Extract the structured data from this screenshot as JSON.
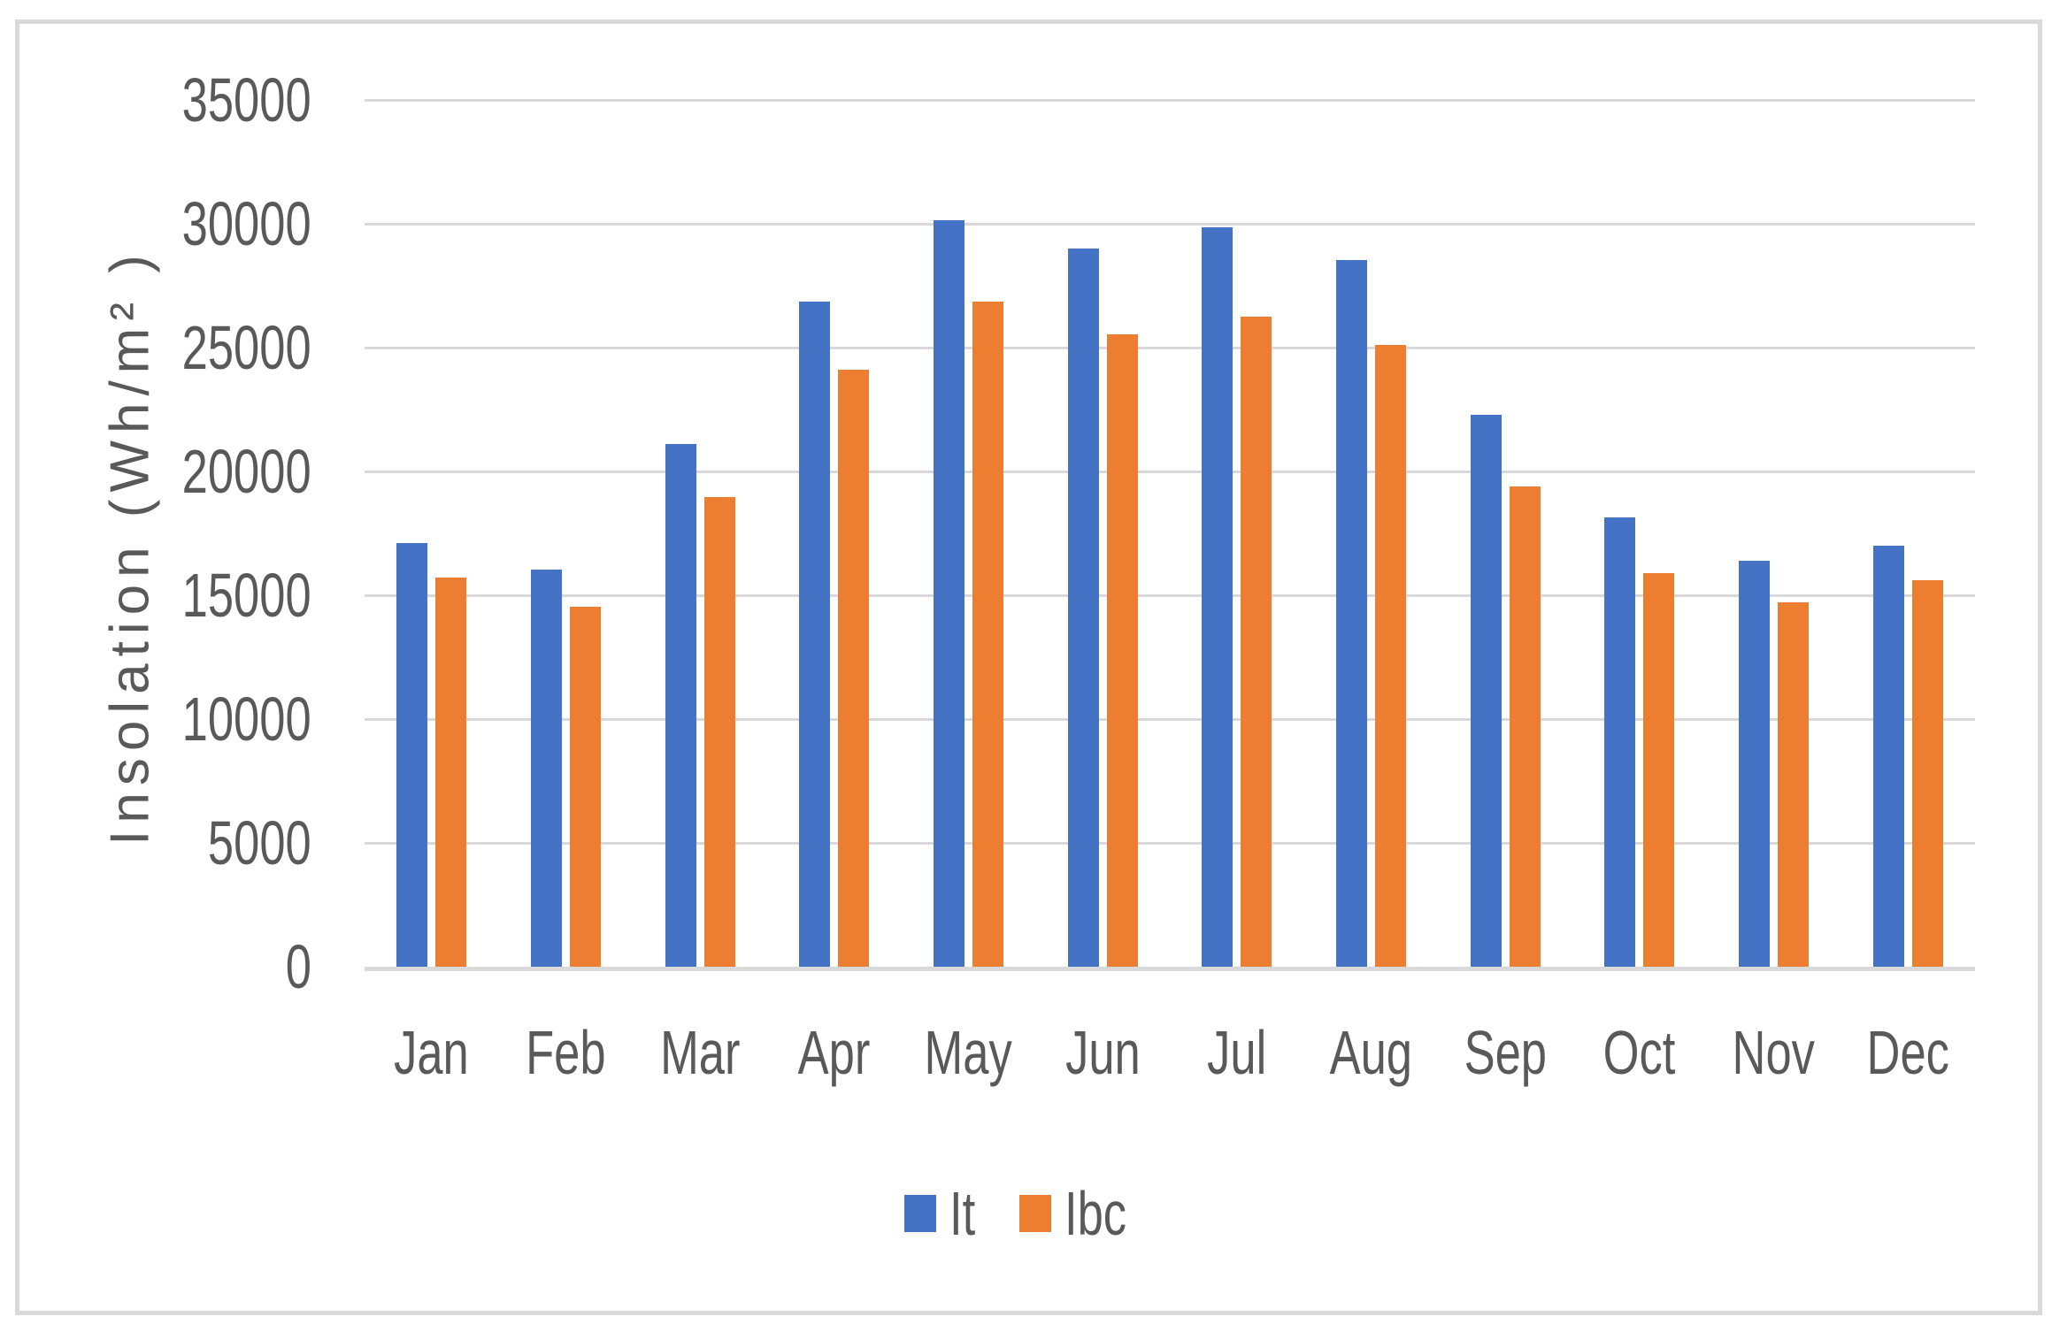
{
  "chart_data": {
    "type": "bar",
    "title": "",
    "xlabel": "",
    "ylabel": "Insolation (Wh/m² )",
    "ylim": [
      0,
      35000
    ],
    "yticks": [
      0,
      5000,
      10000,
      15000,
      20000,
      25000,
      30000,
      35000
    ],
    "grid": true,
    "legend_position": "bottom",
    "categories": [
      "Jan",
      "Feb",
      "Mar",
      "Apr",
      "May",
      "Jun",
      "Jul",
      "Aug",
      "Sep",
      "Oct",
      "Nov",
      "Dec"
    ],
    "series": [
      {
        "name": "It",
        "color": "#4472C4",
        "values": [
          17100,
          16050,
          21100,
          26850,
          30150,
          29000,
          29850,
          28550,
          22300,
          18150,
          16400,
          17000
        ]
      },
      {
        "name": "Ibc",
        "color": "#ED7D31",
        "values": [
          15700,
          14550,
          18950,
          24100,
          26850,
          25550,
          26250,
          25100,
          19400,
          15900,
          14700,
          15600
        ]
      }
    ],
    "colors": {
      "gridline": "#D9D9D9",
      "axis_line": "#D9D9D9",
      "text": "#595959",
      "frame_border": "#D9D9D9",
      "background": "#FFFFFF"
    }
  }
}
